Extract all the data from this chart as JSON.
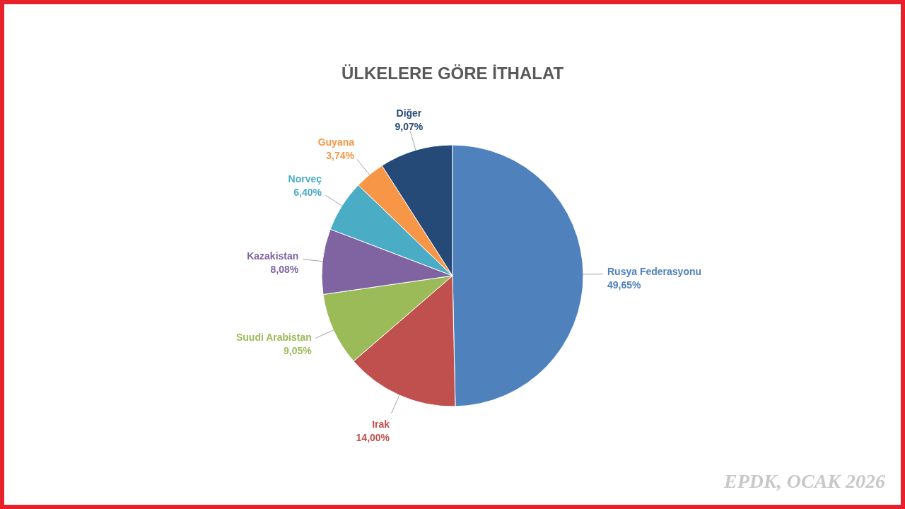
{
  "chart_data": {
    "type": "pie",
    "title": "ÜLKELERE GÖRE İTHALAT",
    "categories": [
      "Rusya Federasyonu",
      "Irak",
      "Suudi Arabistan",
      "Kazakistan",
      "Norveç",
      "Guyana",
      "Diğer"
    ],
    "values": [
      49.65,
      14.0,
      9.05,
      8.08,
      6.4,
      3.74,
      9.07
    ],
    "colors": [
      "#4f81bd",
      "#c0504d",
      "#9bbb59",
      "#8064a2",
      "#4bacc6",
      "#f79646",
      "#264a78"
    ],
    "value_labels": [
      "49,65%",
      "14,00%",
      "9,05%",
      "8,08%",
      "6,40%",
      "3,74%",
      "9,07%"
    ],
    "annotations": [
      "EPDK, OCAK 2026"
    ]
  }
}
